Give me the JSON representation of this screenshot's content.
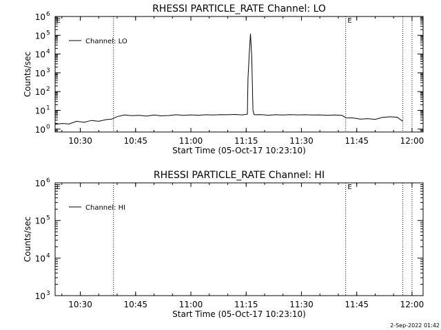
{
  "timestamp": "2-Sep-2022 01:42",
  "chart_data": [
    {
      "type": "line",
      "title": "RHESSI PARTICLE_RATE Channel: LO",
      "xlabel": "Start Time (05-Oct-17 10:23:10)",
      "ylabel": "Counts/sec",
      "yscale": "log",
      "ylim": [
        0.7,
        1000000
      ],
      "xlim": [
        "10:23:10",
        "12:03:00"
      ],
      "x_ticks": [
        "10:30",
        "10:45",
        "11:00",
        "11:15",
        "11:30",
        "11:45",
        "12:00"
      ],
      "y_ticks": [
        {
          "value": 1,
          "base": "10",
          "exp": "0"
        },
        {
          "value": 10,
          "base": "10",
          "exp": "1"
        },
        {
          "value": 100,
          "base": "10",
          "exp": "2"
        },
        {
          "value": 1000,
          "base": "10",
          "exp": "3"
        },
        {
          "value": 10000,
          "base": "10",
          "exp": "4"
        },
        {
          "value": 100000,
          "base": "10",
          "exp": "5"
        },
        {
          "value": 1000000,
          "base": "10",
          "exp": "6"
        }
      ],
      "vlines": [
        "10:39:00",
        "11:42:00",
        "11:57:30",
        "12:00:00"
      ],
      "markers": [
        {
          "text": "E",
          "x": "10:23:30"
        },
        {
          "text": "E",
          "x": "11:42:30"
        }
      ],
      "legend": {
        "position": "top-left",
        "label": "Channel: LO"
      },
      "series": [
        {
          "name": "Channel: LO",
          "points": [
            [
              "10:23:10",
              1.8
            ],
            [
              "10:25:00",
              2.0
            ],
            [
              "10:27:00",
              1.9
            ],
            [
              "10:29:00",
              2.6
            ],
            [
              "10:31:00",
              2.3
            ],
            [
              "10:33:00",
              2.9
            ],
            [
              "10:35:00",
              2.6
            ],
            [
              "10:37:00",
              3.2
            ],
            [
              "10:38:30",
              3.4
            ],
            [
              "10:40:00",
              4.6
            ],
            [
              "10:42:00",
              5.7
            ],
            [
              "10:44:00",
              5.2
            ],
            [
              "10:46:00",
              5.4
            ],
            [
              "10:48:00",
              4.9
            ],
            [
              "10:50:00",
              5.6
            ],
            [
              "10:52:00",
              5.1
            ],
            [
              "10:54:00",
              5.3
            ],
            [
              "10:56:00",
              5.8
            ],
            [
              "10:58:00",
              5.4
            ],
            [
              "11:00:00",
              5.7
            ],
            [
              "11:02:00",
              5.5
            ],
            [
              "11:04:00",
              5.8
            ],
            [
              "11:06:00",
              5.6
            ],
            [
              "11:08:00",
              5.9
            ],
            [
              "11:10:00",
              5.8
            ],
            [
              "11:12:00",
              6.0
            ],
            [
              "11:14:00",
              5.7
            ],
            [
              "11:15:20",
              6.2
            ],
            [
              "11:15:30",
              500
            ],
            [
              "11:15:50",
              10000
            ],
            [
              "11:16:10",
              120000
            ],
            [
              "11:16:30",
              8000
            ],
            [
              "11:16:50",
              10
            ],
            [
              "11:17:10",
              5.8
            ],
            [
              "11:19:00",
              5.9
            ],
            [
              "11:21:00",
              5.5
            ],
            [
              "11:23:00",
              5.8
            ],
            [
              "11:25:00",
              5.6
            ],
            [
              "11:27:00",
              5.9
            ],
            [
              "11:29:00",
              5.7
            ],
            [
              "11:31:00",
              5.8
            ],
            [
              "11:33:00",
              5.6
            ],
            [
              "11:35:00",
              5.7
            ],
            [
              "11:37:00",
              5.5
            ],
            [
              "11:39:00",
              5.6
            ],
            [
              "11:41:00",
              5.4
            ],
            [
              "11:42:00",
              4.0
            ],
            [
              "11:44:00",
              3.9
            ],
            [
              "11:46:00",
              3.4
            ],
            [
              "11:48:00",
              3.6
            ],
            [
              "11:50:00",
              3.3
            ],
            [
              "11:52:00",
              4.2
            ],
            [
              "11:54:00",
              4.5
            ],
            [
              "11:56:00",
              4.3
            ],
            [
              "11:57:00",
              3.0
            ],
            [
              "11:57:30",
              2.7
            ]
          ]
        }
      ]
    },
    {
      "type": "line",
      "title": "RHESSI PARTICLE_RATE Channel: HI",
      "xlabel": "Start Time (05-Oct-17 10:23:10)",
      "ylabel": "Counts/sec",
      "yscale": "log",
      "ylim": [
        1000,
        1000000
      ],
      "xlim": [
        "10:23:10",
        "12:03:00"
      ],
      "x_ticks": [
        "10:30",
        "10:45",
        "11:00",
        "11:15",
        "11:30",
        "11:45",
        "12:00"
      ],
      "y_ticks": [
        {
          "value": 1000,
          "base": "10",
          "exp": "3"
        },
        {
          "value": 10000,
          "base": "10",
          "exp": "4"
        },
        {
          "value": 100000,
          "base": "10",
          "exp": "5"
        },
        {
          "value": 1000000,
          "base": "10",
          "exp": "6"
        }
      ],
      "vlines": [
        "10:39:00",
        "11:42:00",
        "11:57:30",
        "12:00:00"
      ],
      "markers": [
        {
          "text": "E",
          "x": "10:23:30"
        },
        {
          "text": "E",
          "x": "11:42:30"
        }
      ],
      "legend": {
        "position": "top-left",
        "label": "Channel: HI"
      },
      "series": [
        {
          "name": "Channel: HI",
          "points": []
        }
      ]
    }
  ]
}
